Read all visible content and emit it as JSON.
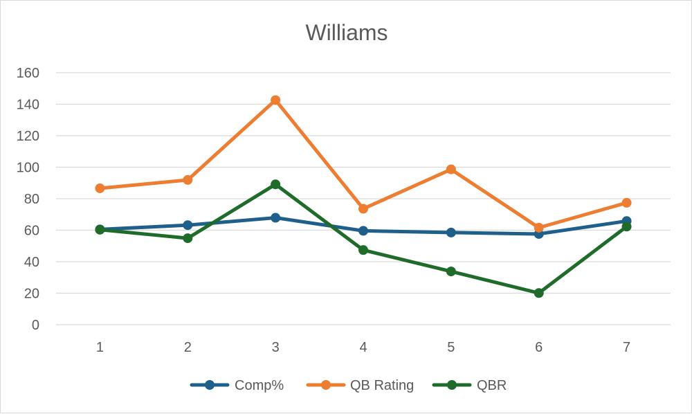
{
  "chart_data": {
    "type": "line",
    "title": "Williams",
    "xlabel": "",
    "ylabel": "",
    "categories": [
      "1",
      "2",
      "3",
      "4",
      "5",
      "6",
      "7"
    ],
    "ylim": [
      0,
      160
    ],
    "yticks": [
      0,
      20,
      40,
      60,
      80,
      100,
      120,
      140,
      160
    ],
    "grid": true,
    "legend_position": "bottom",
    "series": [
      {
        "name": "Comp%",
        "color": "#1f5f8b",
        "values": [
          60.5,
          63.2,
          67.9,
          59.6,
          58.5,
          57.6,
          65.8
        ]
      },
      {
        "name": "QB Rating",
        "color": "#ed7d31",
        "values": [
          86.6,
          91.9,
          142.6,
          73.6,
          98.6,
          61.6,
          77.4
        ]
      },
      {
        "name": "QBR",
        "color": "#1e6b2a",
        "values": [
          60.3,
          54.9,
          89.1,
          47.4,
          33.8,
          20.1,
          62.3
        ]
      }
    ]
  }
}
